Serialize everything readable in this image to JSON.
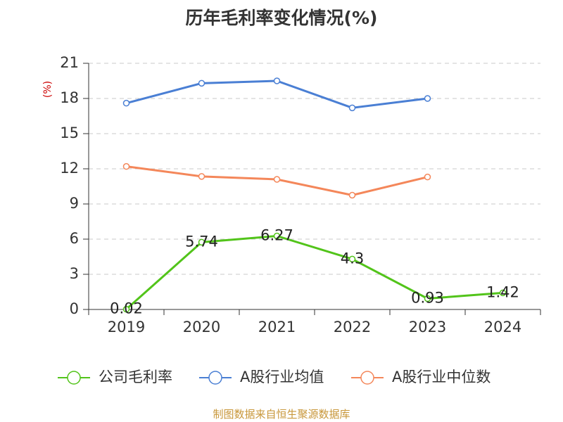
{
  "chart_data": {
    "type": "line",
    "title": "历年毛利率变化情况(%)",
    "ylabel": "(%)",
    "categories": [
      "2019",
      "2020",
      "2021",
      "2022",
      "2023",
      "2024"
    ],
    "ylim": [
      0,
      21
    ],
    "yticks": [
      0,
      3,
      6,
      9,
      12,
      15,
      18,
      21
    ],
    "grid": true,
    "legend_position": "bottom",
    "series": [
      {
        "name": "公司毛利率",
        "color": "#52c41a",
        "values": [
          0.02,
          5.74,
          6.27,
          4.3,
          0.93,
          1.42
        ],
        "show_labels": true,
        "labels": [
          "0.02",
          "5.74",
          "6.27",
          "4.3",
          "0.93",
          "1.42"
        ]
      },
      {
        "name": "A股行业均值",
        "color": "#4a7fd4",
        "values": [
          17.6,
          19.3,
          19.5,
          17.2,
          18.0,
          null
        ],
        "show_labels": false
      },
      {
        "name": "A股行业中位数",
        "color": "#f4875a",
        "values": [
          12.2,
          11.35,
          11.1,
          9.75,
          11.3,
          null
        ],
        "show_labels": false
      }
    ]
  },
  "footer": {
    "source": "制图数据来自恒生聚源数据库"
  }
}
